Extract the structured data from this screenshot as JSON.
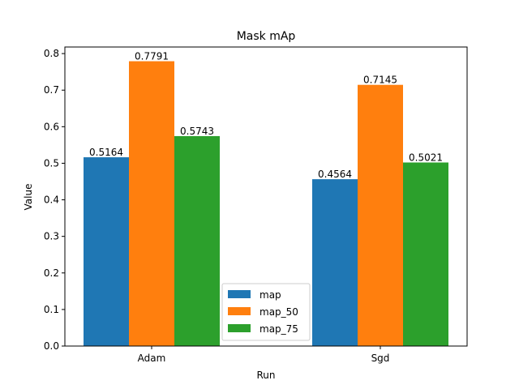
{
  "chart_data": {
    "type": "bar",
    "title": "Mask mAp",
    "xlabel": "Run",
    "ylabel": "Value",
    "categories": [
      "Adam",
      "Sgd"
    ],
    "series": [
      {
        "name": "map",
        "values": [
          0.5164,
          0.4564
        ],
        "labels": [
          "0.5164",
          "0.4564"
        ],
        "color": "#1f77b4"
      },
      {
        "name": "map_50",
        "values": [
          0.7791,
          0.7145
        ],
        "labels": [
          "0.7791",
          "0.7145"
        ],
        "color": "#ff7f0e"
      },
      {
        "name": "map_75",
        "values": [
          0.5743,
          0.5021
        ],
        "labels": [
          "0.5743",
          "0.5021"
        ],
        "color": "#2ca02c"
      }
    ],
    "ylim": [
      0,
      0.818
    ],
    "yticks": [
      0.0,
      0.1,
      0.2,
      0.3,
      0.4,
      0.5,
      0.6,
      0.7,
      0.8
    ],
    "ytick_labels": [
      "0.0",
      "0.1",
      "0.2",
      "0.3",
      "0.4",
      "0.5",
      "0.6",
      "0.7",
      "0.8"
    ],
    "grid": false,
    "legend_position": "bottom-center"
  }
}
